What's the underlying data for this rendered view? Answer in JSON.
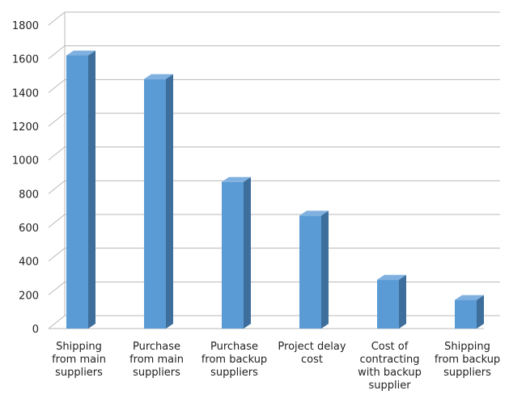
{
  "chart_data": {
    "type": "bar",
    "categories": [
      "Shipping from main suppliers",
      "Purchase from main suppliers",
      "Purchase from backup suppliers",
      "Project delay cost",
      "Cost of contracting with backup supplier",
      "Shipping from backup suppliers"
    ],
    "category_lines": [
      [
        "Shipping",
        "from main",
        "suppliers"
      ],
      [
        "Purchase",
        "from main",
        "suppliers"
      ],
      [
        "Purchase",
        "from backup",
        "suppliers"
      ],
      [
        "Project delay",
        "cost"
      ],
      [
        "Cost of",
        "contracting",
        "with backup",
        "supplier"
      ],
      [
        "Shipping",
        "from backup",
        "suppliers"
      ]
    ],
    "values": [
      1620,
      1480,
      870,
      670,
      290,
      170
    ],
    "ylim": [
      0,
      1800
    ],
    "yticks": [
      0,
      200,
      400,
      600,
      800,
      1000,
      1200,
      1400,
      1600,
      1800
    ],
    "title": "",
    "xlabel": "",
    "ylabel": "",
    "grid": true,
    "style": "3d-column",
    "colors": {
      "bar_front": "#5b9bd5",
      "bar_side": "#3d6e9c",
      "bar_top": "#7fb0df",
      "grid": "#b8b8b8",
      "axis": "#a6a6a6"
    }
  }
}
